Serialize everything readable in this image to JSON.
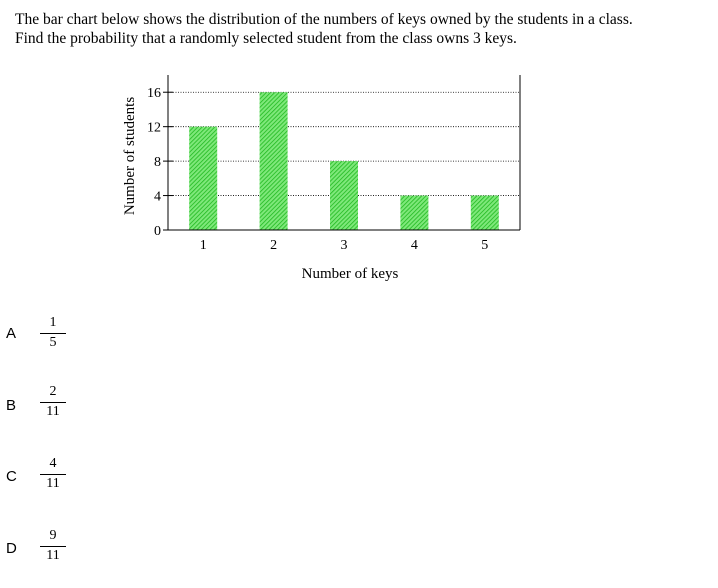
{
  "question": {
    "line1": "The bar chart below shows the distribution of the numbers of keys owned by the students in a class.",
    "line2": "Find the probability that a randomly selected student from the class owns  3  keys."
  },
  "options": [
    {
      "letter": "A",
      "numerator": "1",
      "denominator": "5"
    },
    {
      "letter": "B",
      "numerator": "2",
      "denominator": "11"
    },
    {
      "letter": "C",
      "numerator": "4",
      "denominator": "11"
    },
    {
      "letter": "D",
      "numerator": "9",
      "denominator": "11"
    }
  ],
  "chart_data": {
    "type": "bar",
    "categories": [
      "1",
      "2",
      "3",
      "4",
      "5"
    ],
    "values": [
      12,
      16,
      8,
      4,
      4
    ],
    "xlabel": "Number of keys",
    "ylabel": "Number of students",
    "yticks": [
      0,
      4,
      8,
      12,
      16
    ],
    "ylim": [
      0,
      18
    ],
    "grid": "horizontal dotted",
    "bar_color": "#39d33a",
    "bar_pattern": "diagonal hatch"
  }
}
